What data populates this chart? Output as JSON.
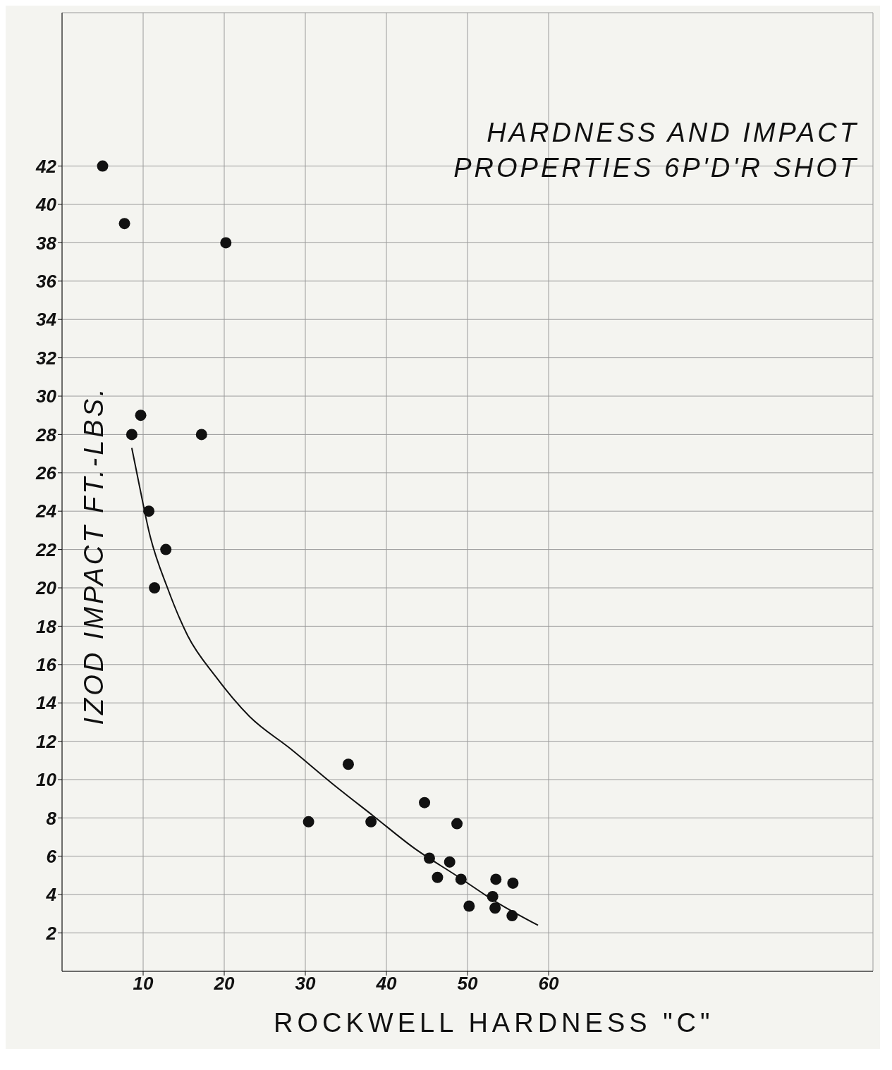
{
  "chart_data": {
    "type": "scatter",
    "title": "HARDNESS AND IMPACT PROPERTIES 6P'D'R SHOT",
    "xlabel": "ROCKWELL HARDNESS \"C\"",
    "ylabel": "IZOD IMPACT FT.-LBS.",
    "xlim": [
      0,
      100
    ],
    "xticks": [
      10,
      20,
      30,
      40,
      50,
      60
    ],
    "ylim": [
      0,
      50
    ],
    "yticks": [
      2,
      4,
      6,
      8,
      10,
      12,
      14,
      16,
      18,
      20,
      22,
      24,
      26,
      28,
      30,
      32,
      34,
      36,
      38,
      40,
      42
    ],
    "grid": true,
    "legend": false,
    "series": [
      {
        "color": "#111111",
        "marker": "circle",
        "x": [
          5,
          7.7,
          20.2,
          9.7,
          8.6,
          17.2,
          10.7,
          12.8,
          11.4,
          35.3,
          30.4,
          38.1,
          44.7,
          48.7,
          45.3,
          47.8,
          46.3,
          49.2,
          50.2,
          53.5,
          53.1,
          53.4,
          55.6,
          55.5
        ],
        "values": [
          42,
          39,
          38,
          29,
          28,
          28,
          24,
          22,
          20,
          10.8,
          7.8,
          7.8,
          8.8,
          7.7,
          5.9,
          5.7,
          4.9,
          4.8,
          3.4,
          4.8,
          3.9,
          3.3,
          4.6,
          2.9
        ]
      },
      {
        "type": "line",
        "color": "#111111",
        "marker": "none",
        "line_style": "solid",
        "x": [
          8.6,
          9.6,
          10.8,
          13,
          15.5,
          18.9,
          23.1,
          28.2,
          33.3,
          38.4,
          43.5,
          48.6,
          53.6,
          58.7
        ],
        "values": [
          27.3,
          25.2,
          22.8,
          20,
          17.5,
          15.4,
          13.3,
          11.6,
          9.8,
          8.1,
          6.4,
          5,
          3.6,
          2.4
        ]
      }
    ]
  }
}
